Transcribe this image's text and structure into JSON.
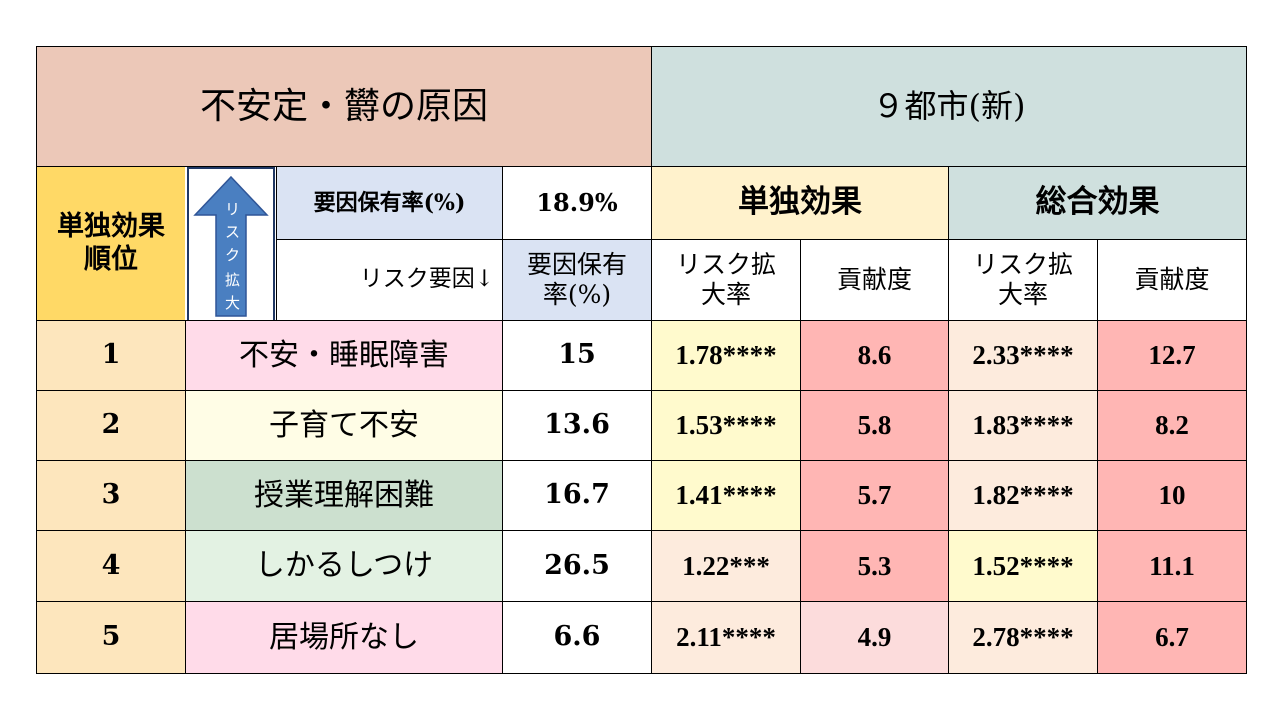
{
  "header": {
    "title": "不安定・欝の原因",
    "city": "９都市(新)"
  },
  "subheader": {
    "rank_heading": "単独効果\n順位",
    "arrow_label": [
      "リ",
      "ス",
      "ク",
      "拡",
      "大"
    ],
    "factor_rate_label": "要因保有率(%)",
    "factor_rate_value": "18.9%",
    "risk_factor_label": "リスク要因↓",
    "factor_rate_col": "要因保有\n率(%)",
    "single_effect": "単独効果",
    "total_effect": "総合効果",
    "risk_expansion": "リスク拡\n大率",
    "contribution": "貢献度"
  },
  "rows": [
    {
      "rank": "1",
      "factor": "不安・睡眠障害",
      "rate": "15",
      "single_risk": "1.78****",
      "single_contrib": "8.6",
      "total_risk": "2.33****",
      "total_contrib": "12.7"
    },
    {
      "rank": "2",
      "factor": "子育て不安",
      "rate": "13.6",
      "single_risk": "1.53****",
      "single_contrib": "5.8",
      "total_risk": "1.83****",
      "total_contrib": "8.2"
    },
    {
      "rank": "3",
      "factor": "授業理解困難",
      "rate": "16.7",
      "single_risk": "1.41****",
      "single_contrib": "5.7",
      "total_risk": "1.82****",
      "total_contrib": "10"
    },
    {
      "rank": "4",
      "factor": "しかるしつけ",
      "rate": "26.5",
      "single_risk": "1.22***",
      "single_contrib": "5.3",
      "total_risk": "1.52****",
      "total_contrib": "11.1"
    },
    {
      "rank": "5",
      "factor": "居場所なし",
      "rate": "6.6",
      "single_risk": "2.11****",
      "single_contrib": "4.9",
      "total_risk": "2.78****",
      "total_contrib": "6.7"
    }
  ],
  "colors": {
    "title_bg": "#ecc8b8",
    "city_bg": "#cfe0de",
    "rank_bg": "#fde6bd",
    "rank_heading_bg": "#ffd966",
    "rate_label_bg": "#dae3f3",
    "single_effect_bg": "#fff2cc",
    "total_effect_bg": "#cfe0de",
    "risk_cell_bg": "#fffacd",
    "risk_cell_alt_bg": "#fdebdd",
    "contrib_bg": "#ffb6b4",
    "contrib_alt_bg": "#fcdcdc",
    "arrow_color": "#4a7fc1",
    "factor_bgs": [
      "#ffdbe9",
      "#fffde6",
      "#cce0cf",
      "#e3f2e3",
      "#ffdbe9"
    ]
  }
}
